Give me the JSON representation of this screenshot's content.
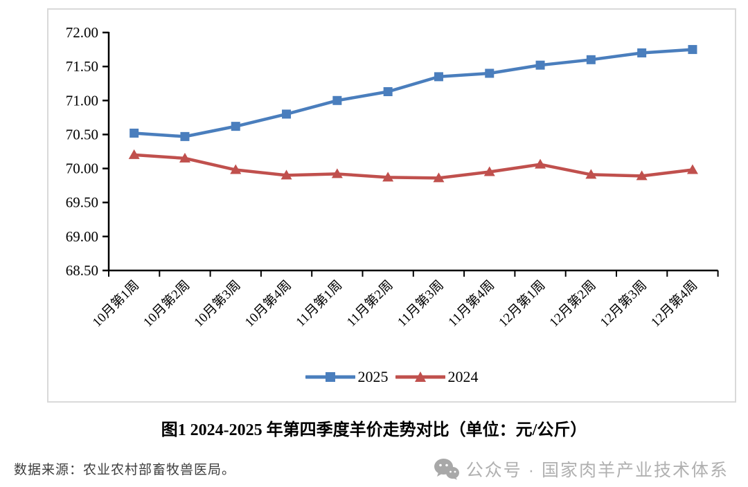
{
  "figure": {
    "caption": "图1  2024-2025 年第四季度羊价走势对比（单位：元/公斤）",
    "source_note": "数据来源：农业农村部畜牧兽医局。",
    "watermark_text": "公众号 · 国家肉羊产业技术体系"
  },
  "colors": {
    "series_2025": "#4A7EBD",
    "series_2024": "#C0504D",
    "axis": "#000000",
    "frame_border": "#D9D9D9",
    "watermark": "#B0B0B0"
  },
  "chart_data": {
    "type": "line",
    "title": "图1 2024-2025 年第四季度羊价走势对比（单位：元/公斤）",
    "unit": "元/公斤",
    "categories": [
      "10月第1周",
      "10月第2周",
      "10月第3周",
      "10月第4周",
      "11月第1周",
      "11月第2周",
      "11月第3周",
      "11月第4周",
      "12月第1周",
      "12月第2周",
      "12月第3周",
      "12月第4周"
    ],
    "series": [
      {
        "name": "2025",
        "color": "#4A7EBD",
        "marker": "square",
        "values": [
          70.52,
          70.47,
          70.62,
          70.8,
          71.0,
          71.13,
          71.35,
          71.4,
          71.52,
          71.6,
          71.7,
          71.75
        ]
      },
      {
        "name": "2024",
        "color": "#C0504D",
        "marker": "triangle",
        "values": [
          70.2,
          70.15,
          69.98,
          69.9,
          69.92,
          69.87,
          69.86,
          69.95,
          70.06,
          69.91,
          69.89,
          69.98
        ]
      }
    ],
    "ylim": [
      68.5,
      72.0
    ],
    "ytick_step": 0.5,
    "ytick_labels": [
      "68.50",
      "69.00",
      "69.50",
      "70.00",
      "70.50",
      "71.00",
      "71.50",
      "72.00"
    ],
    "xlabel": "",
    "ylabel": "",
    "grid": false,
    "legend_position": "bottom"
  }
}
